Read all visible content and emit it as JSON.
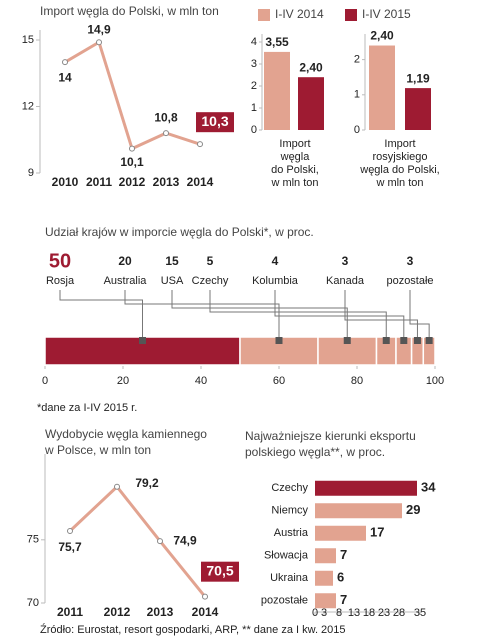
{
  "chart_data": [
    {
      "type": "line",
      "title": [
        "Import węgla do Polski, w mln ton"
      ],
      "categories": [
        "2010",
        "2011",
        "2012",
        "2013",
        "2014"
      ],
      "values": [
        14,
        14.9,
        10.1,
        10.8,
        10.3
      ],
      "value_labels": [
        "14",
        "14,9",
        "10,1",
        "10,8",
        "10,3"
      ],
      "color": "#e2a390",
      "highlight_color": "#9e1b32",
      "ylim": [
        9,
        15
      ],
      "yticks": [
        9,
        12,
        15
      ]
    },
    {
      "type": "bar",
      "category_lines": [
        "Import",
        "węgla",
        "do Polski,",
        "w mln ton"
      ],
      "series": [
        {
          "name": "I-IV 2014",
          "color": "#e2a390",
          "values": [
            3.55
          ],
          "value_labels": [
            "3,55"
          ]
        },
        {
          "name": "I-IV 2015",
          "color": "#9e1b32",
          "values": [
            2.4
          ],
          "value_labels": [
            "2,40"
          ]
        }
      ],
      "ylim": [
        0,
        4
      ],
      "yticks": [
        0,
        1,
        2,
        3,
        4
      ],
      "legend": "top"
    },
    {
      "type": "bar",
      "category_lines": [
        "Import",
        "rosyjskiego",
        "węgla do Polski,",
        "w mln ton"
      ],
      "series": [
        {
          "color": "#e2a390",
          "values": [
            2.4
          ],
          "value_labels": [
            "2,40"
          ]
        },
        {
          "color": "#9e1b32",
          "values": [
            1.19
          ],
          "value_labels": [
            "1,19"
          ]
        }
      ],
      "ylim": [
        0,
        2.5
      ],
      "yticks": [
        0,
        1,
        2
      ]
    },
    {
      "type": "stacked_bar",
      "title": [
        "Udział krajów w imporcie węgla do Polski*, w proc."
      ],
      "categories": [
        "Rosja",
        "Australia",
        "USA",
        "Czechy",
        "Kolumbia",
        "Kanada",
        "pozostałe"
      ],
      "values": [
        50,
        20,
        15,
        5,
        4,
        3,
        3
      ],
      "colors": [
        "#9e1b32",
        "#e2a390",
        "#e2a390",
        "#e2a390",
        "#e2a390",
        "#e2a390",
        "#e2a390"
      ],
      "xlim": [
        0,
        100
      ],
      "xticks": [
        0,
        20,
        40,
        60,
        80,
        100
      ],
      "note": "*dane za I-IV 2015 r."
    },
    {
      "type": "line",
      "title": [
        "Wydobycie węgla kamiennego",
        "w Polsce, w mln ton"
      ],
      "categories": [
        "2011",
        "2012",
        "2013",
        "2014"
      ],
      "values": [
        75.7,
        79.2,
        74.9,
        70.5
      ],
      "value_labels": [
        "75,7",
        "79,2",
        "74,9",
        "70,5"
      ],
      "color": "#e2a390",
      "highlight_color": "#9e1b32",
      "ylim": [
        70,
        81
      ],
      "yticks": [
        70,
        75
      ]
    },
    {
      "type": "barh",
      "title": [
        "Najważniejsze kierunki eksportu",
        "polskiego węgla**, w proc."
      ],
      "categories": [
        "Czechy",
        "Niemcy",
        "Austria",
        "Słowacja",
        "Ukraina",
        "pozostałe"
      ],
      "values": [
        34,
        29,
        17,
        7,
        6,
        7
      ],
      "colors": [
        "#9e1b32",
        "#e2a390",
        "#e2a390",
        "#e2a390",
        "#e2a390",
        "#e2a390"
      ],
      "xlim": [
        0,
        35
      ],
      "xticks": [
        0,
        3,
        8,
        13,
        18,
        23,
        28,
        35
      ]
    }
  ],
  "source": "Źródło: Eurostat, resort gospodarki, ARP, ** dane za I kw. 2015"
}
